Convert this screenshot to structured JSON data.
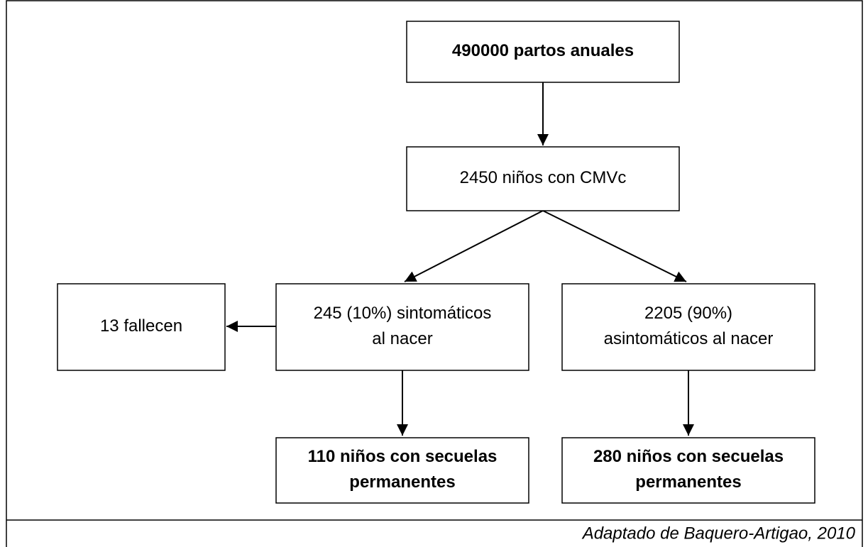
{
  "nodes": [
    {
      "lines": [
        "490000 partos anuales"
      ],
      "bold": true
    },
    {
      "lines": [
        "2450 niños con CMVc"
      ],
      "bold": false
    },
    {
      "lines": [
        "13 fallecen"
      ],
      "bold": false
    },
    {
      "lines": [
        "245 (10%) sintomáticos",
        "al nacer"
      ],
      "bold": false
    },
    {
      "lines": [
        "2205 (90%)",
        "asintomáticos al nacer"
      ],
      "bold": false
    },
    {
      "lines": [
        "110 niños con secuelas",
        "permanentes"
      ],
      "bold": true
    },
    {
      "lines": [
        "280 niños con secuelas",
        "permanentes"
      ],
      "bold": true
    }
  ],
  "caption": "Adaptado de Baquero-Artigao, 2010"
}
